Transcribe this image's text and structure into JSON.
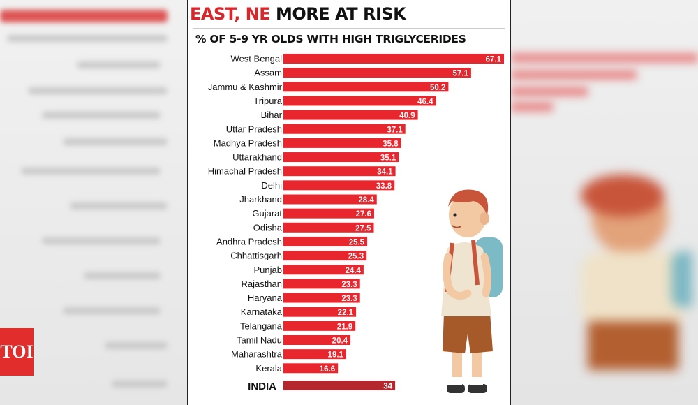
{
  "title_left": "EAST, NE",
  "title_right": " MORE AT RISK",
  "subtitle": "% OF 5-9 YR OLDS WITH HIGH TRIGLYCERIDES",
  "logo": "TOI",
  "colors": {
    "bar": "#e8262e",
    "india_bar": "#b3272d",
    "title_red": "#d8262a"
  },
  "chart_data": {
    "type": "bar",
    "orientation": "horizontal",
    "title": "% OF 5-9 YR OLDS WITH HIGH TRIGLYCERIDES",
    "categories": [
      "West Bengal",
      "Assam",
      "Jammu & Kashmir",
      "Tripura",
      "Bihar",
      "Uttar Pradesh",
      "Madhya Pradesh",
      "Uttarakhand",
      "Himachal Pradesh",
      "Delhi",
      "Jharkhand",
      "Gujarat",
      "Odisha",
      "Andhra Pradesh",
      "Chhattisgarh",
      "Punjab",
      "Rajasthan",
      "Haryana",
      "Karnataka",
      "Telangana",
      "Tamil Nadu",
      "Maharashtra",
      "Kerala"
    ],
    "values": [
      67.1,
      57.1,
      50.2,
      46.4,
      40.9,
      37.1,
      35.8,
      35.1,
      34.1,
      33.8,
      28.4,
      27.6,
      27.5,
      25.5,
      25.3,
      24.4,
      23.3,
      23.3,
      22.1,
      21.9,
      20.4,
      19.1,
      16.6
    ],
    "values_text": [
      "67.1",
      "57.1",
      "50.2",
      "46.4",
      "40.9",
      "37.1",
      "35.8",
      "35.1",
      "34.1",
      "33.8",
      "28.4",
      "27.6",
      "27.5",
      "25.5",
      "25.3",
      "24.4",
      "23.3",
      "23.3",
      "22.1",
      "21.9",
      "20.4",
      "19.1",
      "16.6"
    ],
    "summary": {
      "category": "INDIA",
      "value": 34,
      "value_text": "34"
    },
    "xlim": [
      0,
      67.1
    ]
  }
}
